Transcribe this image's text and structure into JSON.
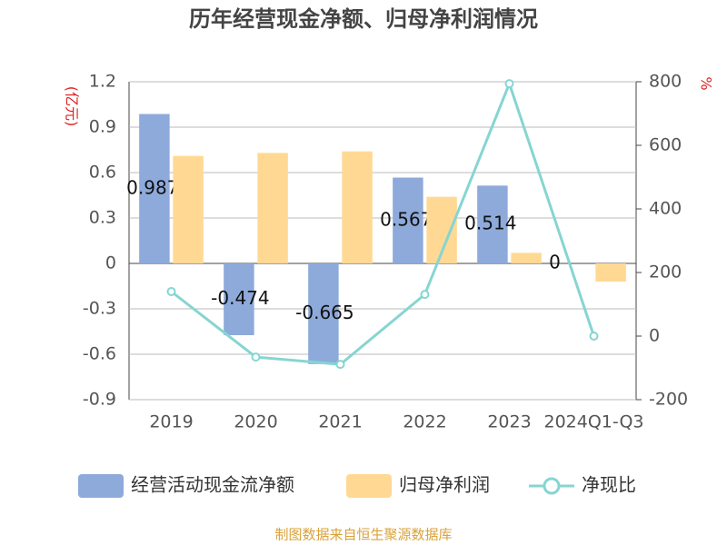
{
  "chart_data": {
    "type": "bar",
    "title": "历年经营现金净额、归母净利润情况",
    "y_label": "(亿元)",
    "y2_label": "%",
    "categories": [
      "2019",
      "2020",
      "2021",
      "2022",
      "2023",
      "2024Q1-Q3"
    ],
    "series": [
      {
        "name": "经营活动现金流净额",
        "type": "bar",
        "color": "#8eaadb",
        "values": [
          0.987,
          -0.474,
          -0.665,
          0.567,
          0.514,
          0
        ],
        "show_labels": true
      },
      {
        "name": "归母净利润",
        "type": "bar",
        "color": "#ffd993",
        "values": [
          0.71,
          0.73,
          0.74,
          0.44,
          0.07,
          -0.12
        ]
      },
      {
        "name": "净现比",
        "type": "line",
        "axis": "y2",
        "color": "#86d5d2",
        "values": [
          140,
          -66,
          -89,
          131,
          794,
          0
        ]
      }
    ],
    "ylim": [
      -0.9,
      1.2
    ],
    "yticks": [
      -0.9,
      -0.6,
      -0.3,
      0,
      0.3,
      0.6,
      0.9,
      1.2
    ],
    "y2lim": [
      -200,
      800
    ],
    "y2ticks": [
      -200,
      0,
      200,
      400,
      600,
      800
    ],
    "grid": true,
    "legend": "bottom",
    "footer": "制图数据来自恒生聚源数据库"
  }
}
